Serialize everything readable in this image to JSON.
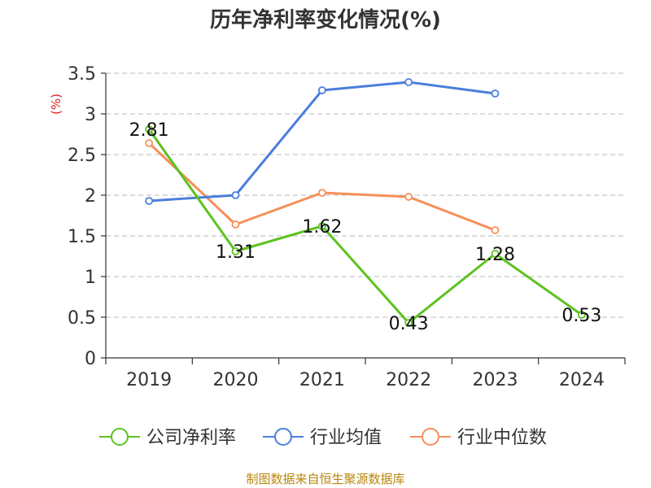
{
  "chart_data": {
    "type": "line",
    "title": "历年净利率变化情况(%)",
    "ylabel": "(%)",
    "xlabel": "",
    "categories": [
      "2019",
      "2020",
      "2021",
      "2022",
      "2023",
      "2024"
    ],
    "ylim": [
      0,
      3.5
    ],
    "yticks": [
      "0",
      "0.5",
      "1",
      "1.5",
      "2",
      "2.5",
      "3",
      "3.5"
    ],
    "grid": true,
    "legend_position": "bottom",
    "series": [
      {
        "name": "公司净利率",
        "color": "#5cc21f",
        "values": [
          2.81,
          1.31,
          1.62,
          0.43,
          1.28,
          0.53
        ],
        "labels": [
          "2.81",
          "1.31",
          "1.62",
          "0.43",
          "1.28",
          "0.53"
        ]
      },
      {
        "name": "行业均值",
        "color": "#4a7fdc",
        "values": [
          1.93,
          2.0,
          3.29,
          3.39,
          3.25,
          null
        ]
      },
      {
        "name": "行业中位数",
        "color": "#f5905a",
        "values": [
          2.64,
          1.64,
          2.03,
          1.98,
          1.57,
          null
        ]
      }
    ]
  },
  "source": "制图数据来自恒生聚源数据库"
}
